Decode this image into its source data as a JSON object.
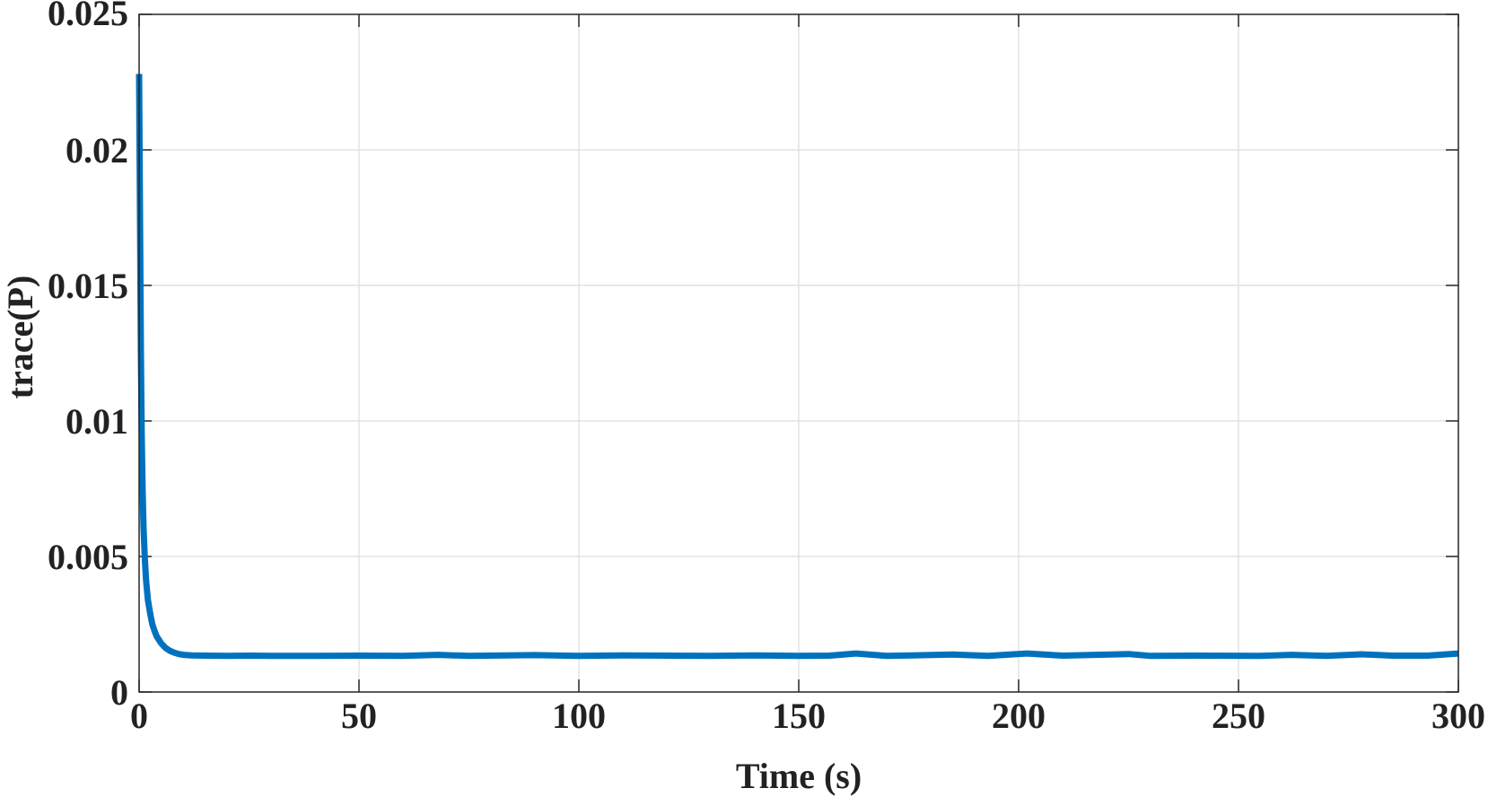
{
  "chart_data": {
    "type": "line",
    "title": "",
    "xlabel": "Time (s)",
    "ylabel": "trace(P)",
    "xlim": [
      0,
      300
    ],
    "ylim": [
      0,
      0.025
    ],
    "xticks": [
      0,
      50,
      100,
      150,
      200,
      250,
      300
    ],
    "xtick_labels": [
      "0",
      "50",
      "100",
      "150",
      "200",
      "250",
      "300"
    ],
    "yticks": [
      0,
      0.005,
      0.01,
      0.015,
      0.02,
      0.025
    ],
    "ytick_labels": [
      "0",
      "0.005",
      "0.01",
      "0.015",
      "0.02",
      "0.025"
    ],
    "grid": true,
    "legend": "none",
    "colors": {
      "series": "#0072BD",
      "axis": "#262626",
      "grid": "#dcdcdc",
      "text": "#222222"
    },
    "series": [
      {
        "x": [
          0,
          0.2,
          0.4,
          0.6,
          0.8,
          1.0,
          1.3,
          1.6,
          2,
          2.5,
          3,
          3.5,
          4,
          5,
          6,
          7,
          8,
          9,
          10,
          12,
          15,
          20,
          25,
          30,
          40,
          50,
          60,
          68,
          75,
          90,
          100,
          110,
          120,
          130,
          140,
          150,
          157,
          163,
          170,
          185,
          193,
          202,
          210,
          225,
          230,
          240,
          255,
          262,
          270,
          278,
          285,
          293,
          300
        ],
        "y": [
          0.0228,
          0.0175,
          0.0125,
          0.0095,
          0.0075,
          0.0061,
          0.0049,
          0.0041,
          0.0034,
          0.0029,
          0.0025,
          0.00225,
          0.00205,
          0.0018,
          0.00163,
          0.00152,
          0.00145,
          0.0014,
          0.00137,
          0.00135,
          0.00134,
          0.00133,
          0.00134,
          0.00133,
          0.00133,
          0.00134,
          0.00133,
          0.00137,
          0.00133,
          0.00136,
          0.00133,
          0.00135,
          0.00134,
          0.00133,
          0.00135,
          0.00133,
          0.00134,
          0.00142,
          0.00133,
          0.00138,
          0.00133,
          0.00142,
          0.00134,
          0.0014,
          0.00133,
          0.00134,
          0.00133,
          0.00137,
          0.00133,
          0.00139,
          0.00134,
          0.00134,
          0.00142
        ]
      }
    ]
  }
}
